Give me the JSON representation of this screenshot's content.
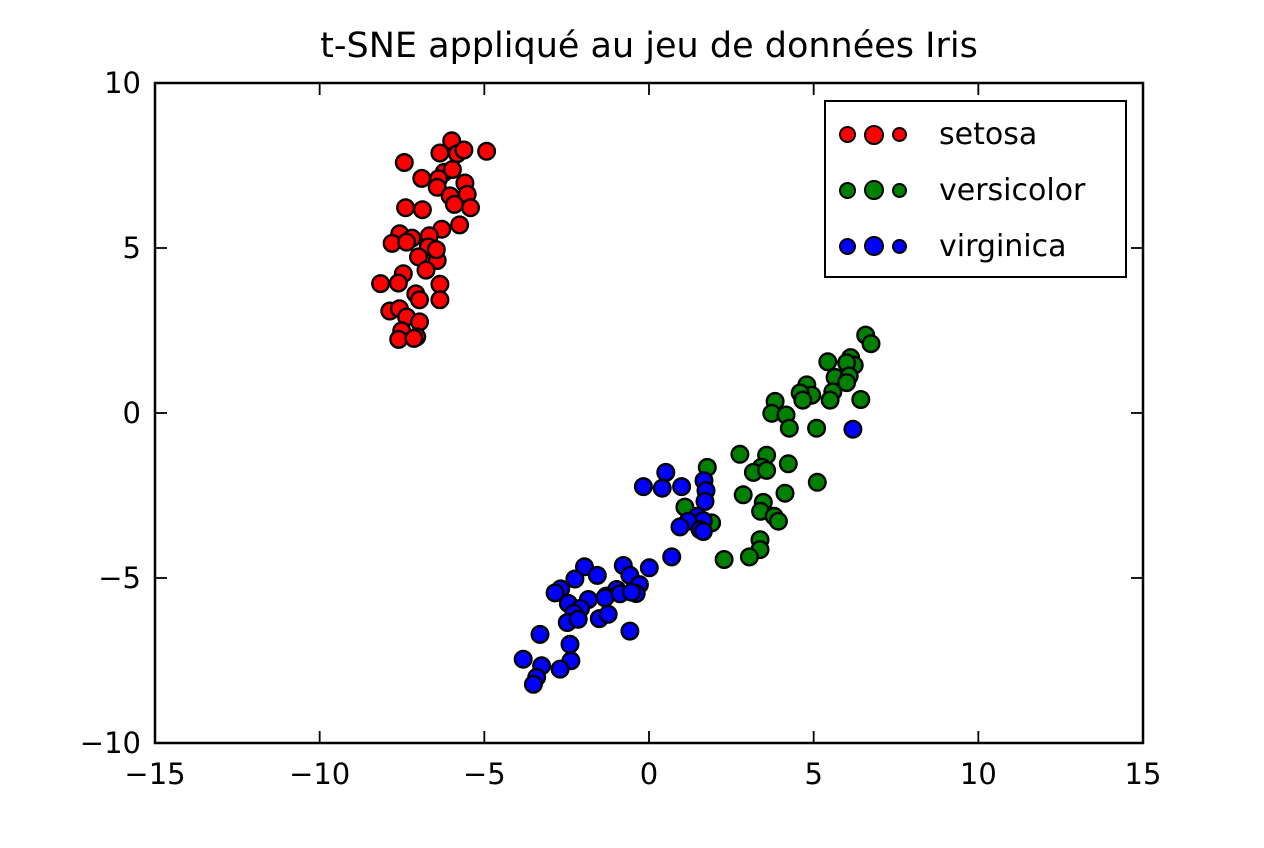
{
  "figure": {
    "background": "#ffffff",
    "axis_color": "#000000"
  },
  "chart_data": {
    "type": "scatter",
    "title": "t-SNE appliqué au jeu de données Iris",
    "xlabel": "",
    "ylabel": "",
    "xlim": [
      -15,
      15
    ],
    "ylim": [
      -10,
      10
    ],
    "x_ticks": [
      -15,
      -10,
      -5,
      0,
      5,
      10,
      15
    ],
    "y_ticks": [
      -10,
      -5,
      0,
      5,
      10
    ],
    "grid": false,
    "tick_direction": "in",
    "legend_position": "upper right",
    "marker_edge_color": "#000000",
    "series": [
      {
        "name": "setosa",
        "color": "#ff0000",
        "points": [
          [
            -5.99,
            8.25
          ],
          [
            -6.35,
            7.88
          ],
          [
            -5.82,
            7.86
          ],
          [
            -5.62,
            7.97
          ],
          [
            -4.93,
            7.93
          ],
          [
            -7.43,
            7.59
          ],
          [
            -6.22,
            7.29
          ],
          [
            -5.97,
            7.38
          ],
          [
            -6.9,
            7.11
          ],
          [
            -6.39,
            7.1
          ],
          [
            -6.43,
            6.84
          ],
          [
            -5.59,
            6.97
          ],
          [
            -5.52,
            6.63
          ],
          [
            -6.04,
            6.58
          ],
          [
            -5.91,
            6.32
          ],
          [
            -5.42,
            6.22
          ],
          [
            -7.39,
            6.22
          ],
          [
            -6.88,
            6.16
          ],
          [
            -5.75,
            5.7
          ],
          [
            -6.29,
            5.57
          ],
          [
            -7.57,
            5.43
          ],
          [
            -7.2,
            5.3
          ],
          [
            -6.67,
            5.37
          ],
          [
            -7.8,
            5.14
          ],
          [
            -7.36,
            5.18
          ],
          [
            -6.7,
            5.03
          ],
          [
            -7.0,
            4.73
          ],
          [
            -6.43,
            4.62
          ],
          [
            -6.46,
            4.95
          ],
          [
            -6.77,
            4.33
          ],
          [
            -7.46,
            4.22
          ],
          [
            -8.15,
            3.92
          ],
          [
            -7.61,
            3.94
          ],
          [
            -6.35,
            3.9
          ],
          [
            -7.08,
            3.61
          ],
          [
            -6.97,
            3.43
          ],
          [
            -6.35,
            3.43
          ],
          [
            -7.87,
            3.09
          ],
          [
            -7.58,
            3.16
          ],
          [
            -7.36,
            2.91
          ],
          [
            -6.97,
            2.76
          ],
          [
            -7.51,
            2.49
          ],
          [
            -7.05,
            2.31
          ],
          [
            -7.6,
            2.23
          ],
          [
            -7.14,
            2.26
          ]
        ]
      },
      {
        "name": "versicolor",
        "color": "#008000",
        "points": [
          [
            6.58,
            2.36
          ],
          [
            6.74,
            2.1
          ],
          [
            5.43,
            1.55
          ],
          [
            6.12,
            1.68
          ],
          [
            6.23,
            1.45
          ],
          [
            6.0,
            1.52
          ],
          [
            5.65,
            1.08
          ],
          [
            6.08,
            1.12
          ],
          [
            6.0,
            0.92
          ],
          [
            4.79,
            0.85
          ],
          [
            4.94,
            0.54
          ],
          [
            5.58,
            0.64
          ],
          [
            4.59,
            0.61
          ],
          [
            4.67,
            0.39
          ],
          [
            3.83,
            0.35
          ],
          [
            5.5,
            0.39
          ],
          [
            6.43,
            0.41
          ],
          [
            3.73,
            -0.01
          ],
          [
            4.16,
            -0.06
          ],
          [
            4.26,
            -0.46
          ],
          [
            5.09,
            -0.46
          ],
          [
            2.76,
            -1.25
          ],
          [
            1.77,
            -1.65
          ],
          [
            3.57,
            -1.28
          ],
          [
            3.42,
            -1.64
          ],
          [
            4.23,
            -1.54
          ],
          [
            3.17,
            -1.8
          ],
          [
            3.57,
            -1.74
          ],
          [
            2.86,
            -2.48
          ],
          [
            5.11,
            -2.1
          ],
          [
            4.13,
            -2.43
          ],
          [
            3.47,
            -2.71
          ],
          [
            3.39,
            -2.98
          ],
          [
            3.8,
            -3.13
          ],
          [
            3.93,
            -3.28
          ],
          [
            1.9,
            -3.33
          ],
          [
            1.09,
            -2.85
          ],
          [
            3.37,
            -3.84
          ],
          [
            3.37,
            -4.14
          ],
          [
            3.05,
            -4.36
          ],
          [
            2.28,
            -4.44
          ]
        ]
      },
      {
        "name": "virginica",
        "color": "#0000ff",
        "points": [
          [
            6.19,
            -0.49
          ],
          [
            0.51,
            -1.8
          ],
          [
            -0.17,
            -2.23
          ],
          [
            0.4,
            -2.28
          ],
          [
            0.99,
            -2.23
          ],
          [
            1.67,
            -2.05
          ],
          [
            1.73,
            -2.35
          ],
          [
            1.7,
            -2.68
          ],
          [
            1.47,
            -3.13
          ],
          [
            1.65,
            -3.26
          ],
          [
            1.19,
            -3.28
          ],
          [
            0.94,
            -3.45
          ],
          [
            1.55,
            -3.53
          ],
          [
            1.65,
            -3.59
          ],
          [
            0.69,
            -4.36
          ],
          [
            0.01,
            -4.69
          ],
          [
            -0.78,
            -4.62
          ],
          [
            -0.58,
            -4.92
          ],
          [
            -1.96,
            -4.66
          ],
          [
            -1.57,
            -4.92
          ],
          [
            -2.25,
            -5.03
          ],
          [
            -0.29,
            -5.2
          ],
          [
            -0.39,
            -5.47
          ],
          [
            -0.98,
            -5.35
          ],
          [
            -1.3,
            -5.55
          ],
          [
            -2.68,
            -5.33
          ],
          [
            -2.85,
            -5.45
          ],
          [
            -1.84,
            -5.65
          ],
          [
            -2.45,
            -5.77
          ],
          [
            -2.08,
            -5.92
          ],
          [
            -1.34,
            -5.6
          ],
          [
            -0.88,
            -5.48
          ],
          [
            -0.53,
            -5.43
          ],
          [
            -2.28,
            -6.07
          ],
          [
            -1.51,
            -6.23
          ],
          [
            -2.48,
            -6.35
          ],
          [
            -2.15,
            -6.25
          ],
          [
            -1.24,
            -6.1
          ],
          [
            -0.58,
            -6.61
          ],
          [
            -3.31,
            -6.71
          ],
          [
            -3.82,
            -7.46
          ],
          [
            -2.4,
            -7.01
          ],
          [
            -2.37,
            -7.51
          ],
          [
            -2.7,
            -7.76
          ],
          [
            -3.26,
            -7.66
          ],
          [
            -3.41,
            -8.01
          ],
          [
            -3.51,
            -8.22
          ]
        ]
      }
    ]
  }
}
